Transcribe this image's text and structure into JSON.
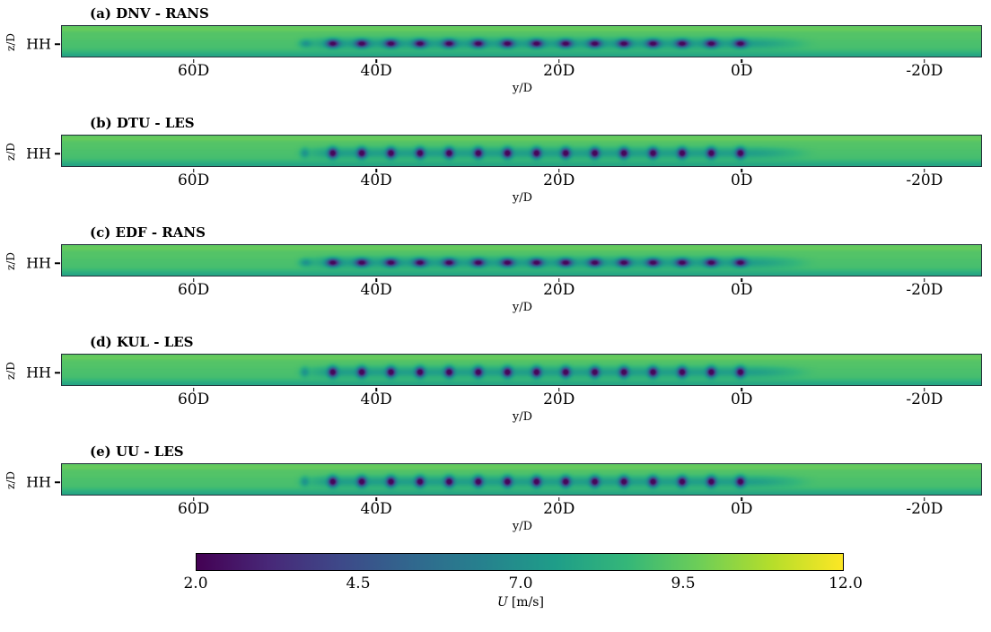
{
  "chart_data": {
    "type": "heatmap",
    "panels": [
      {
        "label": "(a) DNV - RANS",
        "code": "DNV",
        "model": "RANS"
      },
      {
        "label": "(b) DTU - LES",
        "code": "DTU",
        "model": "LES"
      },
      {
        "label": "(c) EDF - RANS",
        "code": "EDF",
        "model": "RANS"
      },
      {
        "label": "(d) KUL - LES",
        "code": "KUL",
        "model": "LES"
      },
      {
        "label": "(e) UU - LES",
        "code": "UU",
        "model": "LES"
      }
    ],
    "x_axis": {
      "label": "y/D",
      "range": [
        74.5,
        -26.5
      ],
      "ticks": [
        {
          "label": "60D",
          "value": 60
        },
        {
          "label": "40D",
          "value": 40
        },
        {
          "label": "20D",
          "value": 20
        },
        {
          "label": "0D",
          "value": 0
        },
        {
          "label": "-20D",
          "value": -20
        }
      ]
    },
    "y_axis": {
      "label": "z/D",
      "tick_label": "HH"
    },
    "colorbar": {
      "label_symbol": "U",
      "label_units": "[m/s]",
      "range": [
        2.0,
        12.0
      ],
      "ticks": [
        2.0,
        4.5,
        7.0,
        9.5,
        12.0
      ],
      "colormap": "viridis",
      "stops": [
        "#440154",
        "#482878",
        "#3e4989",
        "#31688e",
        "#26828e",
        "#1f9e89",
        "#35b779",
        "#6ece58",
        "#b5de2b",
        "#fde725"
      ]
    },
    "flow": {
      "freestream_U_ms": 9.0,
      "wake_min_U_ms": 2.5,
      "turbine_rows": {
        "count": 16,
        "first_yD": 48,
        "spacing_D": 3.2,
        "wake_recovery_yD": -9
      }
    }
  }
}
